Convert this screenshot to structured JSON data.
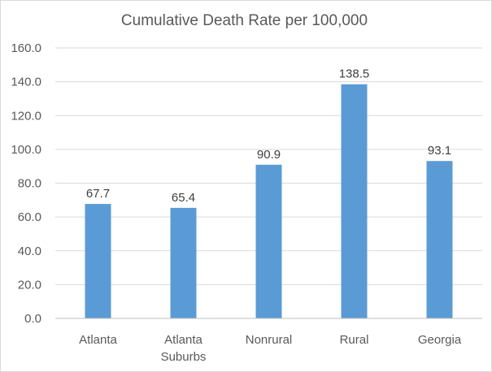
{
  "chart_data": {
    "type": "bar",
    "title": "Cumulative Death Rate per 100,000",
    "xlabel": "",
    "ylabel": "",
    "categories": [
      [
        "Atlanta"
      ],
      [
        "Atlanta",
        "Suburbs"
      ],
      [
        "Nonrural"
      ],
      [
        "Rural"
      ],
      [
        "Georgia"
      ]
    ],
    "values": [
      67.7,
      65.4,
      90.9,
      138.5,
      93.1
    ],
    "value_labels": [
      "67.7",
      "65.4",
      "90.9",
      "138.5",
      "93.1"
    ],
    "ylim": [
      0,
      160
    ],
    "yticks": [
      0,
      20,
      40,
      60,
      80,
      100,
      120,
      140,
      160
    ],
    "ytick_labels": [
      "0.0",
      "20.0",
      "40.0",
      "60.0",
      "80.0",
      "100.0",
      "120.0",
      "140.0",
      "160.0"
    ],
    "grid": true,
    "legend": "none",
    "bar_color": "#5b9bd5"
  }
}
